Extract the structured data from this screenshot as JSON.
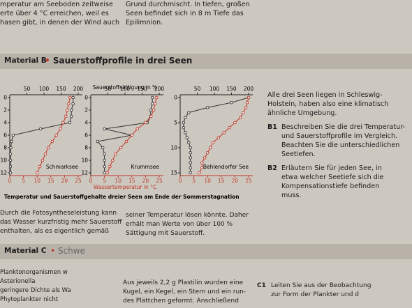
{
  "top": {
    "left": [
      "mperatur am Seeboden zeitweise",
      "erte über 4 °C erreichen, weil es",
      "hasen gibt, in denen der Wind auch"
    ],
    "middle": [
      "Grund durchmischt. In tiefen, großen",
      "Seen befindet sich in 8 m Tiefe das",
      "Epilimnion."
    ]
  },
  "material_b": {
    "label": "Material B",
    "title": "Sauerstoffprofile in drei Seen"
  },
  "figure": {
    "oxygen_label": "Sauerstoffsättigung in %",
    "temperature_label": "Wassertemperatur in °C",
    "caption": "Temperatur und Sauerstoffgehalte dreier Seen am Ende der Sommerstagnation",
    "oxygen_lim": [
      0,
      200
    ],
    "oxygen_ticks": [
      50,
      100,
      150,
      200
    ],
    "temperature_lim": [
      0,
      25
    ],
    "temperature_ticks": [
      0,
      5,
      10,
      15,
      20,
      25
    ],
    "panels": [
      {
        "name": "Schmarksee",
        "depth_lim": [
          0,
          12
        ],
        "depth_ticks": [
          0,
          2,
          4,
          6,
          8,
          10,
          12
        ],
        "depth": [
          0,
          1,
          2,
          3,
          4,
          5,
          6,
          7,
          8,
          9,
          10,
          11,
          12
        ],
        "oxygen": [
          185,
          185,
          180,
          180,
          175,
          90,
          10,
          5,
          3,
          2,
          2,
          2,
          2
        ],
        "temperature": [
          22,
          21.5,
          21,
          20.5,
          19.5,
          18.5,
          17,
          15.5,
          14,
          13,
          12,
          11,
          10
        ]
      },
      {
        "name": "Krummsee",
        "depth_lim": [
          0,
          12
        ],
        "depth_ticks": [
          0,
          2,
          4,
          6,
          8,
          10,
          12
        ],
        "depth": [
          0,
          1,
          2,
          3,
          4,
          5,
          6,
          7,
          8,
          9,
          10,
          11,
          12
        ],
        "oxygen": [
          180,
          180,
          175,
          175,
          165,
          40,
          120,
          20,
          35,
          40,
          40,
          40,
          40
        ],
        "temperature": [
          24,
          23.5,
          23,
          22,
          20,
          17,
          15,
          13,
          11,
          9,
          8,
          7,
          6
        ]
      },
      {
        "name": "Behlendorfer See",
        "depth_lim": [
          0,
          15
        ],
        "depth_ticks": [
          0,
          5,
          10,
          15
        ],
        "depth": [
          0,
          1,
          2,
          3,
          4,
          5,
          6,
          7,
          8,
          9,
          10,
          11,
          12,
          13,
          14,
          15
        ],
        "oxygen": [
          200,
          150,
          80,
          25,
          15,
          10,
          10,
          15,
          20,
          25,
          30,
          30,
          30,
          30,
          30,
          30
        ],
        "temperature": [
          25,
          24.5,
          24,
          23,
          22,
          20,
          18,
          16,
          14,
          12,
          11,
          10,
          9,
          8,
          8,
          7
        ]
      }
    ]
  },
  "side": {
    "intro": [
      "Alle drei Seen liegen in Schleswig-",
      "Holstein, haben also eine klimatisch",
      "ähnliche Umgebung."
    ],
    "tasks": [
      {
        "id": "B1",
        "lines": [
          "Beschreiben Sie die drei Temperatur-",
          "und Sauerstoffprofile im Vergleich.",
          "Beachten Sie die unterschiedlichen",
          "Seetiefen."
        ]
      },
      {
        "id": "B2",
        "lines": [
          "Erläutern Sie für jeden See, in",
          "etwa welcher Seetiefe sich die",
          "Kompensationstiefe befinden",
          "muss."
        ]
      }
    ]
  },
  "below": {
    "left": [
      "Durch die Fotosyntheseleistung kann",
      "das Wasser kurzfristig mehr Sauerstoff",
      "enthalten, als es eigentlich gemäß"
    ],
    "middle": [
      "seiner Temperatur lösen könnte. Daher",
      "erhält man Werte von über 100 %",
      "Sättigung mit Sauerstoff."
    ]
  },
  "material_c": {
    "label": "Material C",
    "title": "Schwe"
  },
  "bottom": {
    "left": [
      "Planktonorganismen w",
      "Asterionella",
      "geringere Dichte als Wa",
      "Phytoplankter nicht"
    ],
    "middle": [
      "Aus jeweils 2,2 g Plastilin wurden eine",
      "Kugel, ein Kegel, ein Stern und ein run-",
      "des Plättchen geformt. Anschließend"
    ],
    "task": {
      "id": "C1",
      "lines": [
        "Leiten Sie aus der Beobachtung",
        "zur Form der Plankter und d"
      ]
    }
  }
}
